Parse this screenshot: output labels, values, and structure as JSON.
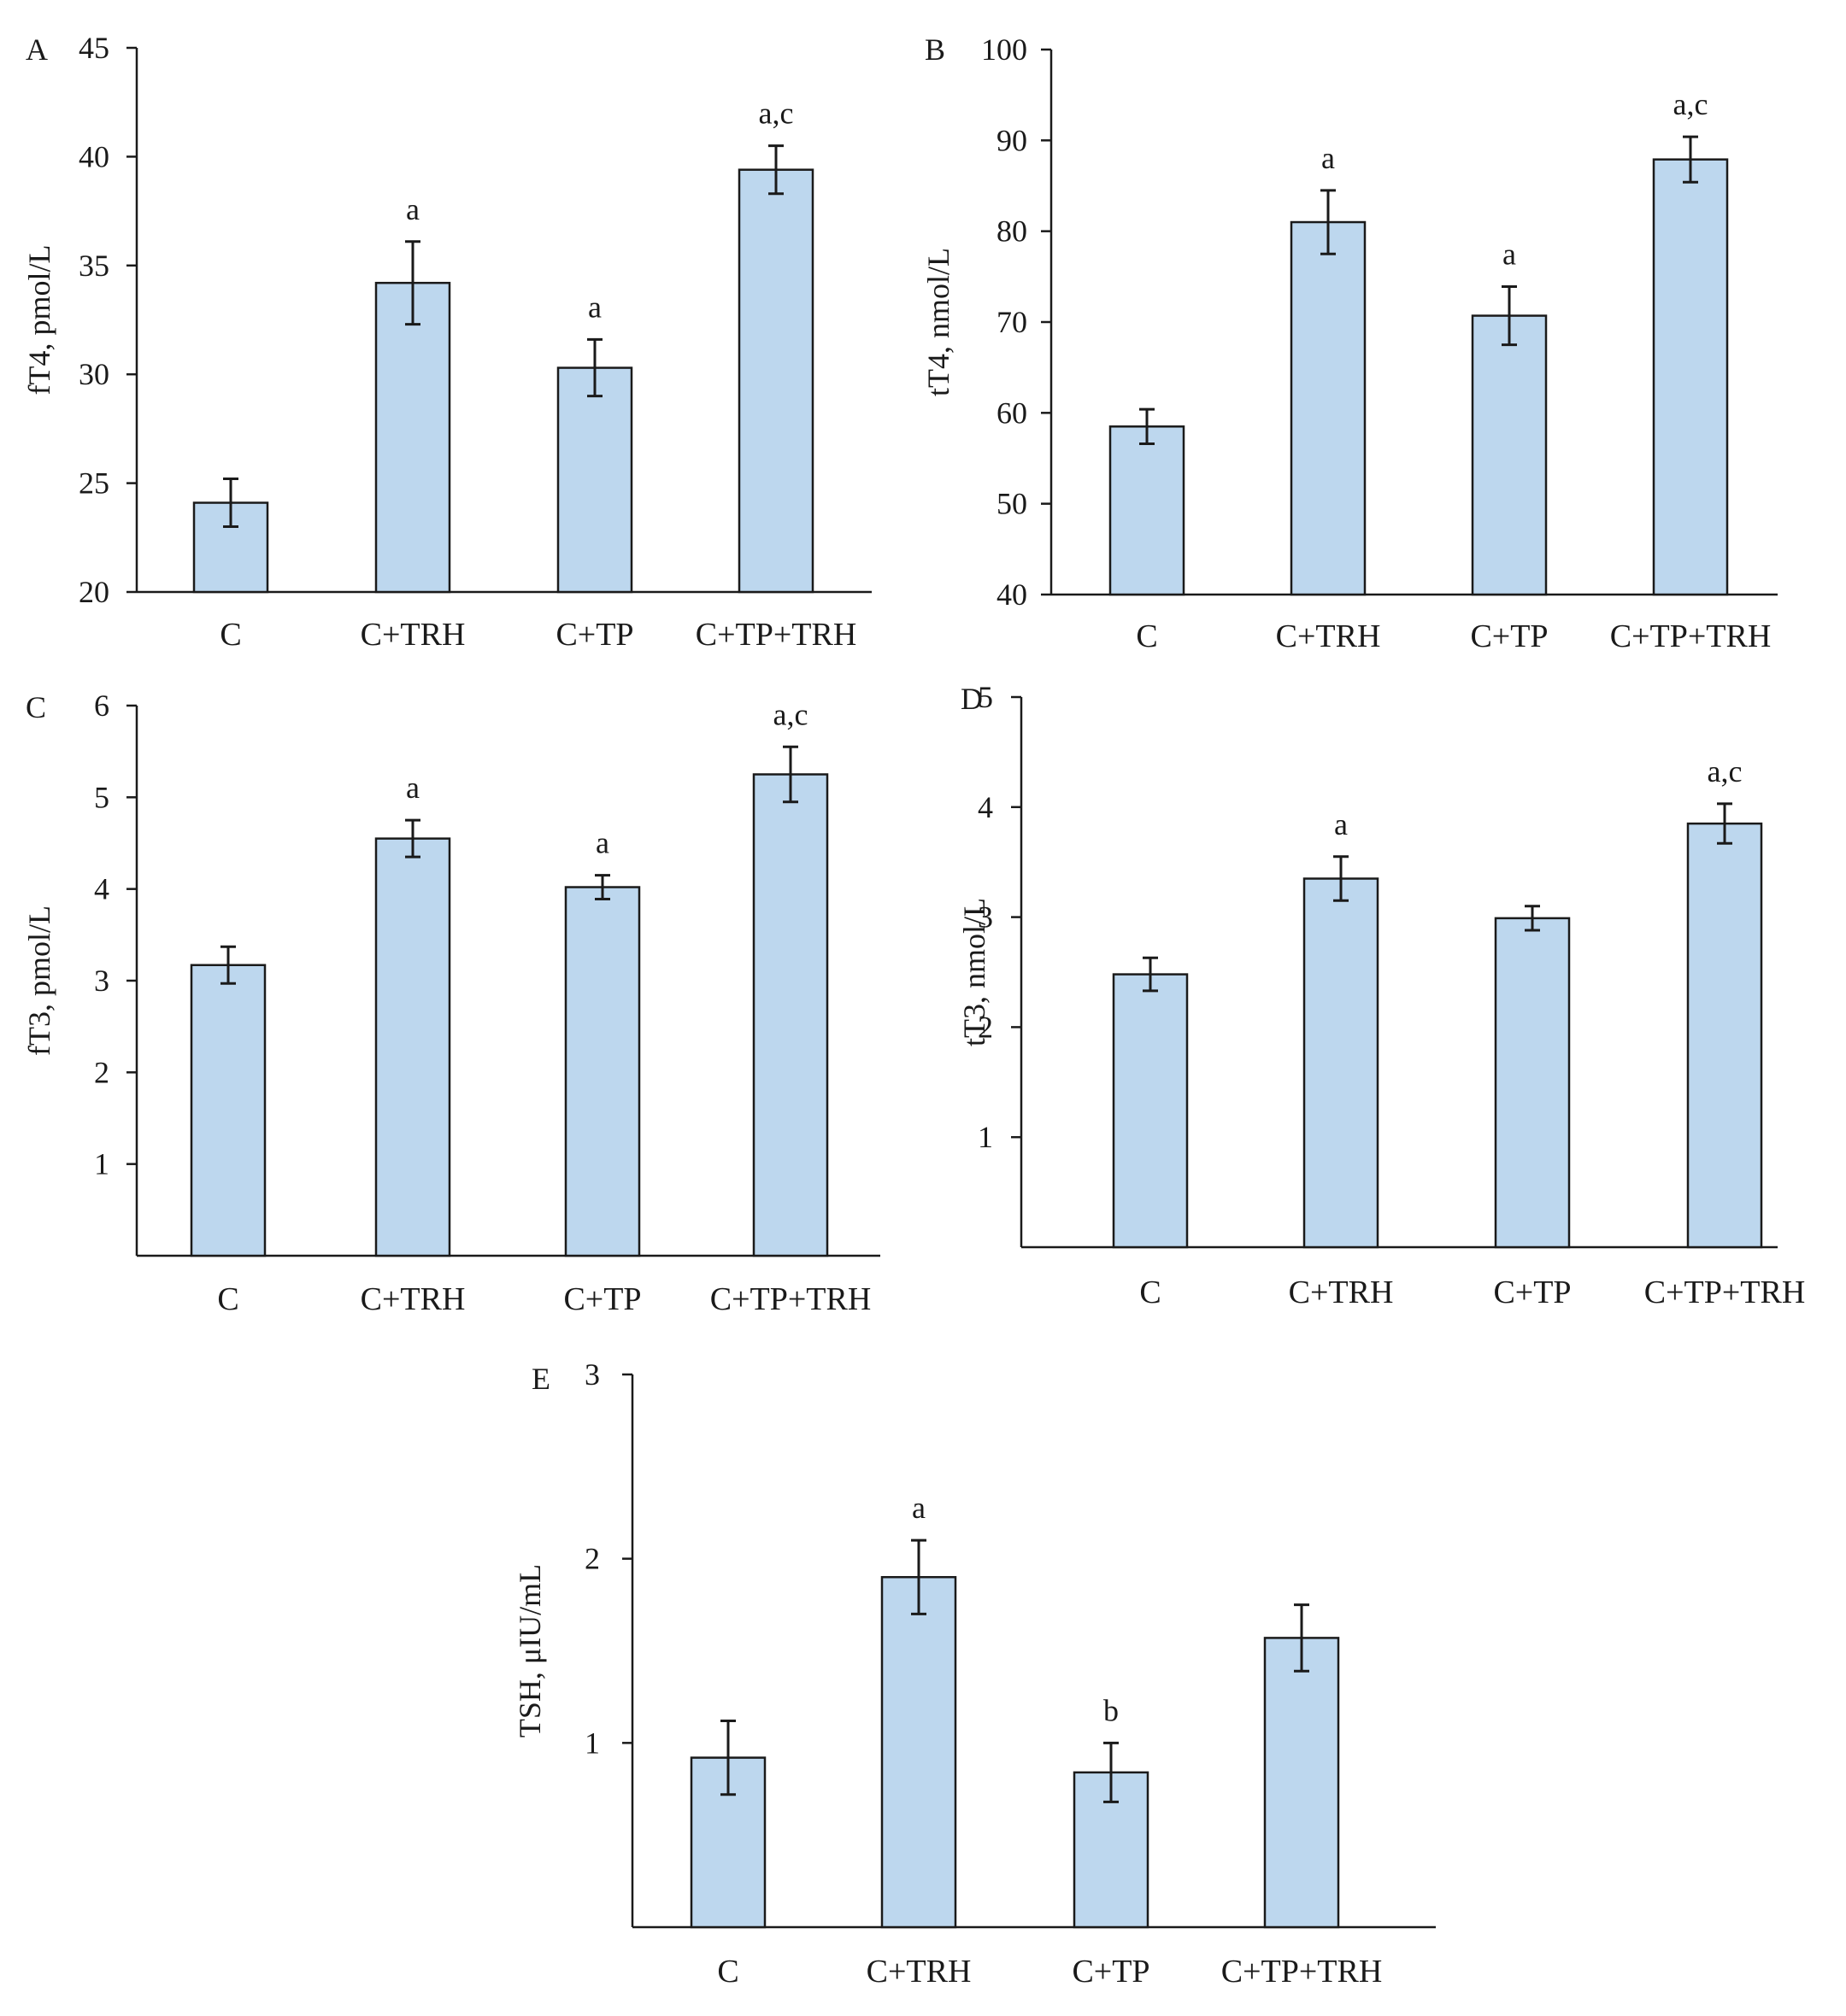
{
  "chart_data": [
    {
      "panel": "A",
      "type": "bar",
      "ylabel": "fT4, pmol/L",
      "ylim": [
        20,
        45
      ],
      "yticks": [
        20,
        25,
        30,
        35,
        40,
        45
      ],
      "categories": [
        "C",
        "C+TRH",
        "C+TP",
        "C+TP+TRH"
      ],
      "values": [
        24.1,
        34.2,
        30.3,
        39.4
      ],
      "errors": [
        1.1,
        1.9,
        1.3,
        1.1
      ],
      "annotations": [
        "",
        "a",
        "a",
        "a,c"
      ]
    },
    {
      "panel": "B",
      "type": "bar",
      "ylabel": "tT4, nmol/L",
      "ylim": [
        40,
        100
      ],
      "yticks": [
        40,
        50,
        60,
        70,
        80,
        90,
        100
      ],
      "categories": [
        "C",
        "C+TRH",
        "C+TP",
        "C+TP+TRH"
      ],
      "values": [
        58.5,
        81.0,
        70.7,
        87.9
      ],
      "errors": [
        1.9,
        3.5,
        3.2,
        2.5
      ],
      "annotations": [
        "",
        "a",
        "a",
        "a,c"
      ]
    },
    {
      "panel": "C",
      "type": "bar",
      "ylabel": "fT3, pmol/L",
      "ylim": [
        0,
        6
      ],
      "yticks": [
        1,
        2,
        3,
        4,
        5,
        6
      ],
      "categories": [
        "C",
        "C+TRH",
        "C+TP",
        "C+TP+TRH"
      ],
      "values": [
        3.17,
        4.55,
        4.02,
        5.25
      ],
      "errors": [
        0.2,
        0.2,
        0.13,
        0.3
      ],
      "annotations": [
        "",
        "a",
        "a",
        "a,c"
      ]
    },
    {
      "panel": "D",
      "type": "bar",
      "ylabel": "tT3, nmol/L",
      "ylim": [
        0,
        5
      ],
      "yticks": [
        1,
        2,
        3,
        4,
        5
      ],
      "categories": [
        "C",
        "C+TRH",
        "C+TP",
        "C+TP+TRH"
      ],
      "values": [
        2.48,
        3.35,
        2.99,
        3.85
      ],
      "errors": [
        0.15,
        0.2,
        0.11,
        0.18
      ],
      "annotations": [
        "",
        "a",
        "",
        "a,c"
      ]
    },
    {
      "panel": "E",
      "type": "bar",
      "ylabel": "TSH, μIU/mL",
      "ylim": [
        0,
        3
      ],
      "yticks": [
        1,
        2,
        3
      ],
      "categories": [
        "C",
        "C+TRH",
        "C+TP",
        "C+TP+TRH"
      ],
      "values": [
        0.92,
        1.9,
        0.84,
        1.57
      ],
      "errors": [
        0.2,
        0.2,
        0.16,
        0.18
      ],
      "annotations": [
        "",
        "a",
        "b",
        ""
      ]
    }
  ]
}
